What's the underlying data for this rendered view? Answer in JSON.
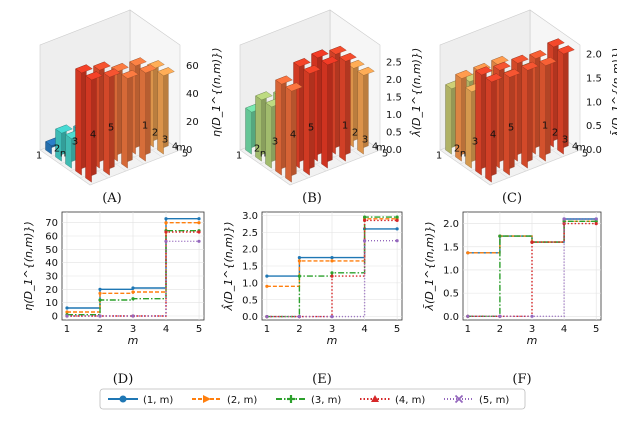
{
  "captions": [
    "(A)",
    "(B)",
    "(C)",
    "(D)",
    "(E)",
    "(F)"
  ],
  "colors": {
    "1": "#1f77b4",
    "2": "#ff7f0e",
    "3": "#2ca02c",
    "4": "#d62728",
    "5": "#9467bd"
  },
  "legend": [
    "(1, m)",
    "(2, m)",
    "(3, m)",
    "(4, m)",
    "(5, m)"
  ],
  "chart_data": [
    {
      "type": "bar3d",
      "panel": "(A)",
      "zlabel": "η(D_1^{(n,m)})",
      "xlabel": "n",
      "ylabel": "m",
      "x_ticks": [
        "1",
        "2",
        "3",
        "4",
        "5"
      ],
      "y_ticks": [
        "1",
        "2",
        "3",
        "4",
        "5"
      ],
      "z_ticks": [
        "0",
        "20",
        "40",
        "60"
      ],
      "zlim": [
        0,
        75
      ],
      "values": [
        [
          6,
          20,
          21,
          73,
          73
        ],
        [
          3,
          17,
          18,
          70,
          70
        ],
        [
          1,
          12,
          13,
          64,
          64
        ],
        [
          0,
          0,
          0,
          63,
          63
        ],
        [
          0,
          0,
          0,
          56,
          56
        ]
      ]
    },
    {
      "type": "bar3d",
      "panel": "(B)",
      "zlabel": "λ̂(D_1^{(n,m)})",
      "xlabel": "n",
      "ylabel": "m",
      "x_ticks": [
        "1",
        "2",
        "3",
        "4",
        "5"
      ],
      "y_ticks": [
        "1",
        "2",
        "3",
        "4",
        "5"
      ],
      "z_ticks": [
        "0.0",
        "0.5",
        "1.0",
        "1.5",
        "2.0",
        "2.5"
      ],
      "zlim": [
        0,
        3.0
      ],
      "values": [
        [
          1.2,
          1.75,
          1.75,
          2.6,
          2.6
        ],
        [
          0.9,
          1.65,
          1.65,
          2.9,
          2.9
        ],
        [
          0,
          1.2,
          1.3,
          2.95,
          2.95
        ],
        [
          0,
          0,
          1.2,
          2.85,
          2.85
        ],
        [
          0,
          0,
          0,
          2.25,
          2.25
        ]
      ]
    },
    {
      "type": "bar3d",
      "panel": "(C)",
      "zlabel": "λ̄(D_1^{(n,m)})",
      "xlabel": "n",
      "ylabel": "m",
      "x_ticks": [
        "1",
        "2",
        "3",
        "4",
        "5"
      ],
      "y_ticks": [
        "1",
        "2",
        "3",
        "4",
        "5"
      ],
      "z_ticks": [
        "0.0",
        "0.5",
        "1.0",
        "1.5",
        "2.0"
      ],
      "zlim": [
        0,
        2.2
      ],
      "values": [
        [
          1.37,
          1.73,
          1.6,
          2.1,
          2.1
        ],
        [
          1.37,
          1.73,
          1.6,
          2.05,
          2.05
        ],
        [
          0,
          1.73,
          1.6,
          2.05,
          2.05
        ],
        [
          0,
          0,
          1.6,
          2.0,
          2.0
        ],
        [
          0,
          0,
          0,
          2.1,
          2.1
        ]
      ]
    },
    {
      "type": "line",
      "panel": "(D)",
      "ylabel": "η(D_1^{(n,m)})",
      "xlabel": "m",
      "x": [
        1,
        2,
        3,
        4,
        5
      ],
      "y_ticks": [
        0,
        10,
        20,
        30,
        40,
        50,
        60,
        70
      ],
      "ylim": [
        -3,
        78
      ],
      "series": [
        {
          "name": "(1, m)",
          "values": [
            6,
            20,
            21,
            73,
            73
          ]
        },
        {
          "name": "(2, m)",
          "values": [
            3,
            17,
            18,
            70,
            70
          ]
        },
        {
          "name": "(3, m)",
          "values": [
            1,
            12,
            13,
            64,
            64
          ]
        },
        {
          "name": "(4, m)",
          "values": [
            0,
            0,
            0,
            63,
            63
          ]
        },
        {
          "name": "(5, m)",
          "values": [
            0,
            0,
            0,
            56,
            56
          ]
        }
      ]
    },
    {
      "type": "line",
      "panel": "(E)",
      "ylabel": "λ̂(D_1^{(n,m)})",
      "xlabel": "m",
      "x": [
        1,
        2,
        3,
        4,
        5
      ],
      "y_ticks": [
        0.0,
        0.5,
        1.0,
        1.5,
        2.0,
        2.5,
        3.0
      ],
      "ylim": [
        -0.1,
        3.1
      ],
      "series": [
        {
          "name": "(1, m)",
          "values": [
            1.2,
            1.75,
            1.75,
            2.6,
            2.6
          ]
        },
        {
          "name": "(2, m)",
          "values": [
            0.9,
            1.65,
            1.65,
            2.9,
            2.9
          ]
        },
        {
          "name": "(3, m)",
          "values": [
            0,
            1.2,
            1.3,
            2.95,
            2.95
          ]
        },
        {
          "name": "(4, m)",
          "values": [
            0,
            0,
            1.2,
            2.85,
            2.85
          ]
        },
        {
          "name": "(5, m)",
          "values": [
            0,
            0,
            0,
            2.25,
            2.25
          ]
        }
      ]
    },
    {
      "type": "line",
      "panel": "(F)",
      "ylabel": "λ̄(D_1^{(n,m)})",
      "xlabel": "m",
      "x": [
        1,
        2,
        3,
        4,
        5
      ],
      "y_ticks": [
        0.0,
        0.5,
        1.0,
        1.5,
        2.0
      ],
      "ylim": [
        -0.08,
        2.25
      ],
      "series": [
        {
          "name": "(1, m)",
          "values": [
            1.37,
            1.73,
            1.6,
            2.1,
            2.1
          ]
        },
        {
          "name": "(2, m)",
          "values": [
            1.37,
            1.73,
            1.6,
            2.05,
            2.05
          ]
        },
        {
          "name": "(3, m)",
          "values": [
            0,
            1.73,
            1.6,
            2.05,
            2.05
          ]
        },
        {
          "name": "(4, m)",
          "values": [
            0,
            0,
            1.6,
            2.0,
            2.0
          ]
        },
        {
          "name": "(5, m)",
          "values": [
            0,
            0,
            0,
            2.1,
            2.1
          ]
        }
      ]
    }
  ]
}
